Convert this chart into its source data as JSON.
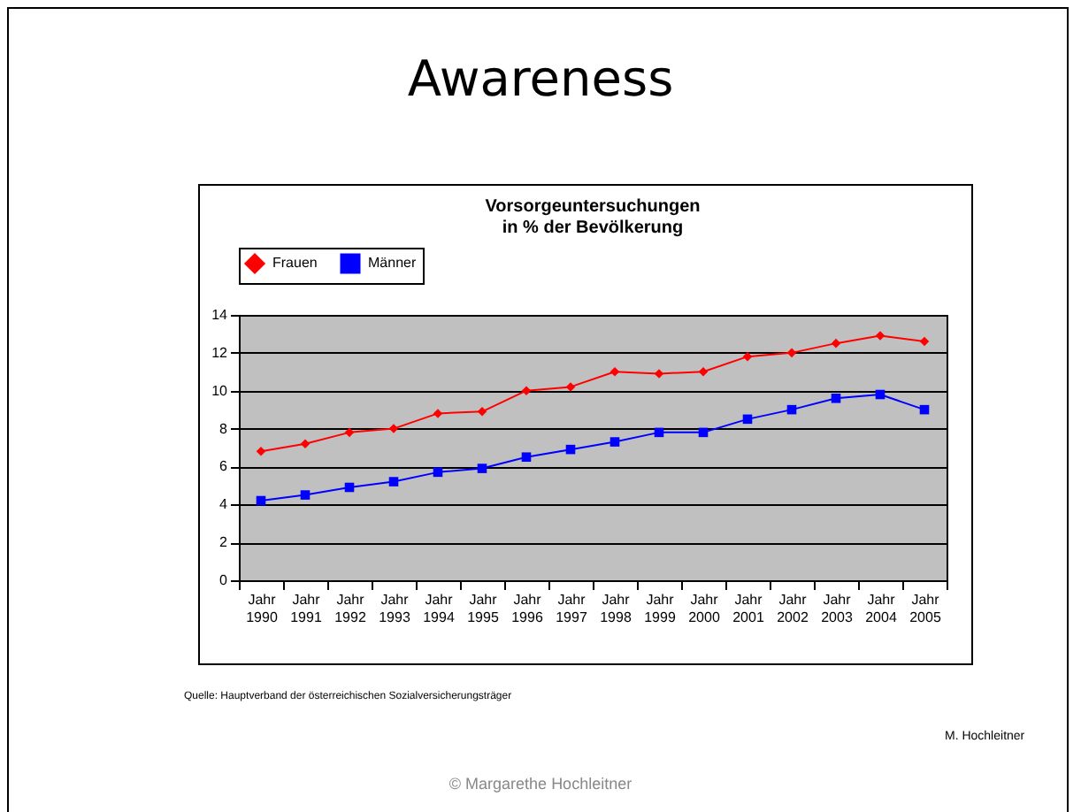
{
  "chart_data": {
    "type": "line",
    "title": "Awareness",
    "subtitle": "Vorsorgeuntersuchungen\nin % der Bevölkerung",
    "categories": [
      "Jahr 1990",
      "Jahr 1991",
      "Jahr 1992",
      "Jahr 1993",
      "Jahr 1994",
      "Jahr 1995",
      "Jahr 1996",
      "Jahr 1997",
      "Jahr 1998",
      "Jahr 1999",
      "Jahr 2000",
      "Jahr 2001",
      "Jahr 2002",
      "Jahr 2003",
      "Jahr 2004",
      "Jahr 2005"
    ],
    "series": [
      {
        "name": "Frauen",
        "color": "#ff0000",
        "marker": "diamond",
        "values": [
          6.8,
          7.2,
          7.8,
          8.0,
          8.8,
          8.9,
          10.0,
          10.2,
          11.0,
          10.9,
          11.0,
          11.8,
          12.0,
          12.5,
          12.9,
          12.6
        ]
      },
      {
        "name": "Männer",
        "color": "#0000ff",
        "marker": "square",
        "values": [
          4.2,
          4.5,
          4.9,
          5.2,
          5.7,
          5.9,
          6.5,
          6.9,
          7.3,
          7.8,
          7.8,
          8.5,
          9.0,
          9.6,
          9.8,
          9.0
        ]
      }
    ],
    "ylim": [
      0,
      14
    ],
    "yticks": [
      0,
      2,
      4,
      6,
      8,
      10,
      12,
      14
    ],
    "grid": "y",
    "legend": "top",
    "line_style": "solid",
    "annotations": [
      "Quelle: Hauptverband der österreichischen Sozialversicherungsträger",
      "M. Hochleitner",
      "© Margarethe Hochleitner"
    ]
  }
}
